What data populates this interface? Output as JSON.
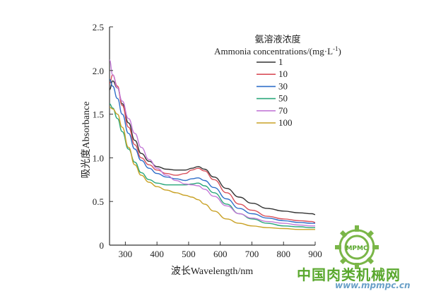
{
  "chart_data": {
    "type": "line",
    "title": "",
    "xlabel": "波长Wavelength/nm",
    "ylabel": "吸光度Absorbance",
    "xlim": [
      250,
      900
    ],
    "ylim": [
      0,
      2.5
    ],
    "xticks": [
      300,
      400,
      500,
      600,
      700,
      800,
      900
    ],
    "yticks": [
      0,
      0.5,
      1.0,
      1.5,
      2.0,
      2.5
    ],
    "ytick_labels": [
      "0",
      "0.5",
      "1.0",
      "1.5",
      "2.0",
      "2.5"
    ],
    "grid": false,
    "legend": {
      "title_cn": "氨溶液浓度",
      "title_en": "Ammonia concentrations/(mg·L",
      "title_sup": "-1",
      "title_close": ")",
      "placement": "top-right"
    },
    "series": [
      {
        "name": "1",
        "color": "#333333",
        "x": [
          250,
          260,
          275,
          290,
          310,
          330,
          350,
          375,
          400,
          430,
          460,
          490,
          510,
          530,
          550,
          580,
          620,
          660,
          700,
          750,
          800,
          850,
          890,
          900
        ],
        "y": [
          1.78,
          1.88,
          1.8,
          1.62,
          1.4,
          1.2,
          1.05,
          0.96,
          0.9,
          0.87,
          0.86,
          0.86,
          0.88,
          0.9,
          0.87,
          0.78,
          0.65,
          0.55,
          0.48,
          0.42,
          0.39,
          0.37,
          0.36,
          0.35
        ]
      },
      {
        "name": "10",
        "color": "#d9505a",
        "x": [
          250,
          260,
          275,
          290,
          310,
          330,
          350,
          375,
          400,
          430,
          460,
          490,
          510,
          530,
          550,
          580,
          620,
          660,
          700,
          750,
          800,
          850,
          890,
          900
        ],
        "y": [
          1.85,
          1.95,
          1.82,
          1.6,
          1.35,
          1.15,
          1.0,
          0.92,
          0.86,
          0.82,
          0.8,
          0.82,
          0.86,
          0.88,
          0.85,
          0.75,
          0.6,
          0.47,
          0.4,
          0.33,
          0.3,
          0.28,
          0.27,
          0.26
        ]
      },
      {
        "name": "30",
        "color": "#2f6fc9",
        "x": [
          250,
          260,
          275,
          290,
          310,
          330,
          350,
          375,
          400,
          430,
          460,
          490,
          510,
          530,
          550,
          580,
          620,
          660,
          700,
          750,
          800,
          850,
          890,
          900
        ],
        "y": [
          1.9,
          1.82,
          1.68,
          1.5,
          1.28,
          1.1,
          0.97,
          0.88,
          0.82,
          0.78,
          0.76,
          0.74,
          0.76,
          0.77,
          0.74,
          0.66,
          0.53,
          0.42,
          0.36,
          0.31,
          0.28,
          0.26,
          0.25,
          0.25
        ]
      },
      {
        "name": "50",
        "color": "#2aa77a",
        "x": [
          250,
          260,
          275,
          290,
          310,
          330,
          350,
          375,
          400,
          430,
          460,
          490,
          510,
          530,
          550,
          580,
          620,
          660,
          700,
          750,
          800,
          850,
          890,
          900
        ],
        "y": [
          1.62,
          1.57,
          1.45,
          1.3,
          1.1,
          0.95,
          0.83,
          0.75,
          0.71,
          0.69,
          0.69,
          0.69,
          0.7,
          0.71,
          0.68,
          0.6,
          0.47,
          0.36,
          0.3,
          0.25,
          0.22,
          0.21,
          0.2,
          0.2
        ]
      },
      {
        "name": "70",
        "color": "#c47ad8",
        "x": [
          250,
          260,
          275,
          290,
          310,
          330,
          350,
          375,
          400,
          430,
          460,
          490,
          510,
          530,
          550,
          580,
          620,
          660,
          700,
          750,
          800,
          850,
          890,
          900
        ],
        "y": [
          2.12,
          1.95,
          1.8,
          1.65,
          1.45,
          1.28,
          1.12,
          0.98,
          0.88,
          0.8,
          0.74,
          0.7,
          0.69,
          0.68,
          0.64,
          0.56,
          0.45,
          0.36,
          0.31,
          0.27,
          0.25,
          0.23,
          0.22,
          0.22
        ]
      },
      {
        "name": "100",
        "color": "#c9a227",
        "x": [
          250,
          260,
          275,
          290,
          310,
          330,
          350,
          375,
          400,
          430,
          460,
          490,
          510,
          530,
          550,
          580,
          620,
          660,
          700,
          750,
          800,
          850,
          890,
          900
        ],
        "y": [
          1.58,
          1.56,
          1.5,
          1.35,
          1.12,
          0.92,
          0.8,
          0.72,
          0.67,
          0.63,
          0.6,
          0.57,
          0.55,
          0.52,
          0.47,
          0.39,
          0.3,
          0.25,
          0.22,
          0.2,
          0.19,
          0.18,
          0.18,
          0.18
        ]
      }
    ]
  },
  "watermark": {
    "text_cn": "中国肉类机械网",
    "url": "www.mpmpc.cn",
    "logo_text": "MPMC",
    "logo_icon": "gear-icon",
    "color_green": "#5aa82e",
    "color_blue": "#6aa0c8"
  }
}
